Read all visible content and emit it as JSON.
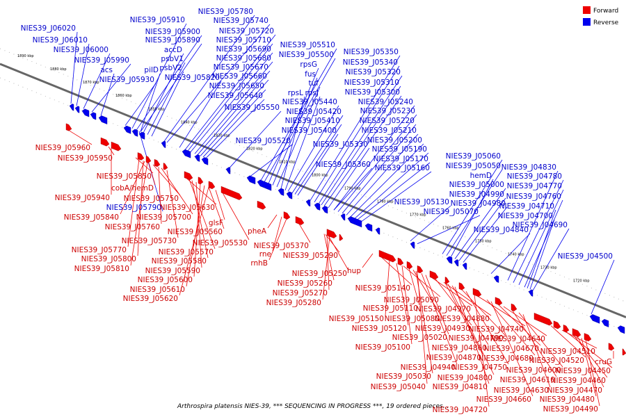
{
  "legend": {
    "forward_label": "Forward",
    "reverse_label": "Reverse",
    "forward_color": "#ee0000",
    "reverse_color": "#0000ee"
  },
  "caption": "Arthrospira platensis NIES-39, *** SEQUENCING IN PROGRESS ***, 19 ordered pieces...",
  "scale_ticks": [
    "1890 kbp",
    "1880 kbp",
    "1870 kbp",
    "1860 kbp",
    "1850 kbp",
    "1840 kbp",
    "1830 kbp",
    "1820 kbp",
    "1810 kbp",
    "1800 kbp",
    "1790 kbp",
    "1780 kbp",
    "1770 kbp",
    "1760 kbp",
    "1750 kbp",
    "1740 kbp",
    "1730 kbp",
    "1720 kbp"
  ],
  "reverse_labels": [
    "NIES39_J06020",
    "NIES39_J06010",
    "NIES39_J06000",
    "NIES39_J05990",
    "acs",
    "NIES39_J05930",
    "NIES39_J05910",
    "NIES39_J05900",
    "NIES39_J05890",
    "accD",
    "psbV1",
    "psbV2",
    "pilD",
    "NIES39_J05780",
    "NIES39_J05740",
    "NIES39_J05720",
    "NIES39_J05710",
    "NIES39_J05690",
    "NIES39_J05680",
    "NIES39_J05670",
    "NIES39_J05660",
    "NIES39_J05650",
    "NIES39_J05640",
    "NIES39_J05820",
    "NIES39_J05550",
    "NIES39_J05520",
    "NIES39_J05510",
    "NIES39_J05500",
    "rpsG",
    "fus",
    "tuf",
    "rpsL",
    "rpsJ",
    "NIES39_J05440",
    "NIES39_J05420",
    "NIES39_J05410",
    "NIES39_J05400",
    "NIES39_J05350",
    "NIES39_J05340",
    "NIES39_J05320",
    "NIES39_J05310",
    "NIES39_J05300",
    "NIES39_J05240",
    "NIES39_J05230",
    "NIES39_J05220",
    "NIES39_J05210",
    "NIES39_J05200",
    "NIES39_J05190",
    "NIES39_J05170",
    "NIES39_J05160",
    "NIES39_J05330",
    "NIES39_J05360",
    "NIES39_J05060",
    "NIES39_J05050",
    "hemD",
    "NIES39_J05000",
    "NIES39_J04990",
    "NIES39_J04980",
    "NIES39_J05130",
    "NIES39_J05070",
    "NIES39_J04830",
    "NIES39_J04780",
    "NIES39_J04770",
    "NIES39_J04760",
    "NIES39_J04710",
    "NIES39_J04700",
    "NIES39_J04690",
    "NIES39_J04840",
    "NIES39_J04500",
    "NIES39_J05790"
  ],
  "forward_labels": [
    "NIES39_J05960",
    "NIES39_J05950",
    "NIES39_J05850",
    "cobA/hemD",
    "NIES39_J05940",
    "NIES39_J05750",
    "NIES39_J05840",
    "NIES39_J05760",
    "NIES39_J05630",
    "NIES39_J05700",
    "glsF",
    "NIES39_J05560",
    "NIES39_J05730",
    "NIES39_J05770",
    "NIES39_J05800",
    "NIES39_J05810",
    "NIES39_J05570",
    "NIES39_J05580",
    "NIES39_J05590",
    "NIES39_J05600",
    "NIES39_J05610",
    "NIES39_J05620",
    "NIES39_J05530",
    "pheA",
    "rne",
    "rnhB",
    "NIES39_J05370",
    "NIES39_J05290",
    "NIES39_J05250",
    "NIES39_J05260",
    "NIES39_J05270",
    "NIES39_J05280",
    "hup",
    "NIES39_J05140",
    "NIES39_J05090",
    "NIES39_J05110",
    "NIES39_J04970",
    "NIES39_J05150",
    "NIES39_J05080",
    "NIES39_J04880",
    "NIES39_J05120",
    "NIES39_J04930",
    "NIES39_J04740",
    "NIES39_J05020",
    "NIES39_J04790",
    "NIES39_J04640",
    "NIES39_J05100",
    "NIES39_J04860",
    "NIES39_J04670",
    "NIES39_J04870",
    "NIES39_J04680",
    "NIES39_J04510",
    "NIES39_J04940",
    "NIES39_J04750",
    "NIES39_J04600",
    "NIES39_J04520",
    "NIES39_J05030",
    "NIES39_J04800",
    "NIES39_J04610",
    "NIES39_J04450",
    "NIES39_J05040",
    "NIES39_J04810",
    "NIES39_J04630",
    "NIES39_J04460",
    "NIES39_J04660",
    "NIES39_J04470",
    "NIES39_J04480",
    "NIES39_J04720",
    "NIES39_J04490",
    "cruG"
  ]
}
